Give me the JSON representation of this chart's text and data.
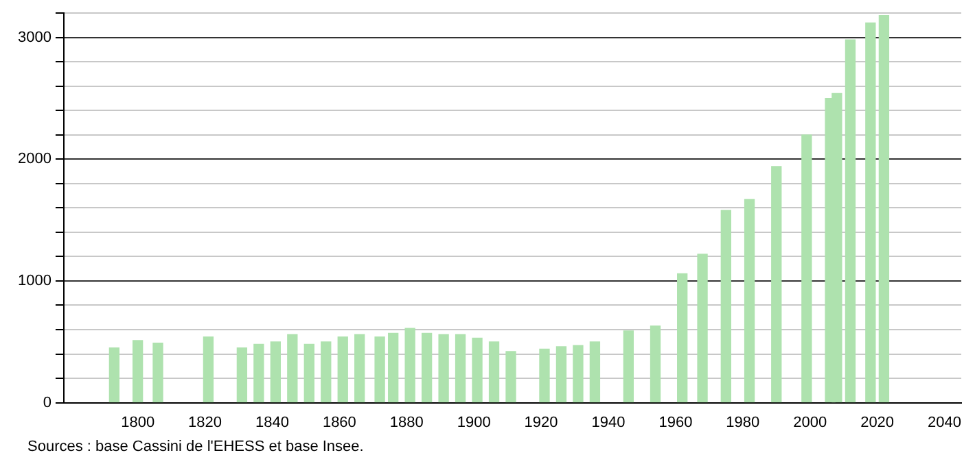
{
  "chart_data": {
    "type": "bar",
    "x": [
      1793,
      1800,
      1806,
      1821,
      1831,
      1836,
      1841,
      1846,
      1851,
      1856,
      1861,
      1866,
      1872,
      1876,
      1881,
      1886,
      1891,
      1896,
      1901,
      1906,
      1911,
      1921,
      1926,
      1931,
      1936,
      1946,
      1954,
      1962,
      1968,
      1975,
      1982,
      1990,
      1999,
      2006,
      2008,
      2012,
      2018,
      2022
    ],
    "values": [
      450,
      510,
      490,
      540,
      450,
      480,
      500,
      560,
      480,
      500,
      540,
      560,
      540,
      570,
      610,
      570,
      560,
      560,
      530,
      500,
      420,
      440,
      460,
      470,
      500,
      590,
      630,
      1060,
      1220,
      1580,
      1670,
      1940,
      2200,
      2500,
      2540,
      2980,
      3120,
      3180
    ],
    "color": "#aee2ae",
    "xlim": [
      1778,
      2045
    ],
    "xticks": [
      1800,
      1820,
      1840,
      1860,
      1880,
      1900,
      1920,
      1940,
      1960,
      1980,
      2000,
      2020,
      2040
    ],
    "ylim": [
      0,
      3200
    ],
    "yticks": [
      0,
      {
        "value": 200,
        "label": null
      },
      {
        "value": 400,
        "label": null
      },
      {
        "value": 600,
        "label": null
      },
      {
        "value": 800,
        "label": null
      },
      1000,
      {
        "value": 1200,
        "label": null
      },
      {
        "value": 1400,
        "label": null
      },
      {
        "value": 1600,
        "label": null
      },
      {
        "value": 1800,
        "label": null
      },
      2000,
      {
        "value": 2200,
        "label": null
      },
      {
        "value": 2400,
        "label": null
      },
      {
        "value": 2600,
        "label": null
      },
      {
        "value": 2800,
        "label": null
      },
      3000,
      {
        "value": 3200,
        "label": null
      }
    ],
    "grid": "y",
    "annotations": [
      "Sources : base Cassini de l'EHESS et base Insee."
    ]
  }
}
